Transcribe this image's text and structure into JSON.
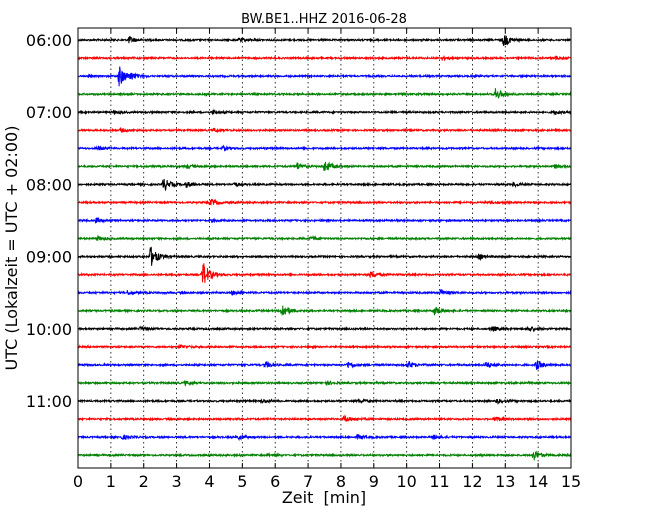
{
  "chart_data": {
    "type": "line",
    "title": "BW.BE1..HHZ 2016-06-28",
    "xlabel": "Zeit  [min]",
    "ylabel": "UTC (Lokalzeit = UTC + 02:00)",
    "xlim": [
      0,
      15
    ],
    "x_ticks": [
      0,
      1,
      2,
      3,
      4,
      5,
      6,
      7,
      8,
      9,
      10,
      11,
      12,
      13,
      14,
      15
    ],
    "y_tick_labels": [
      "06:00",
      "07:00",
      "08:00",
      "09:00",
      "10:00",
      "11:00"
    ],
    "trace_interval_min": 15,
    "grid": "vertical dotted lines at every minute",
    "colors": [
      "#000000",
      "#ff0000",
      "#0000ff",
      "#008000"
    ],
    "traces": [
      {
        "start": "06:00",
        "color": "#000000",
        "events": [
          [
            1.55,
            0.5
          ],
          [
            4.9,
            0.3
          ],
          [
            12.95,
            1.0
          ]
        ]
      },
      {
        "start": "06:15",
        "color": "#ff0000",
        "events": [
          [
            11.1,
            0.3
          ],
          [
            14.5,
            0.3
          ]
        ]
      },
      {
        "start": "06:30",
        "color": "#0000ff",
        "events": [
          [
            1.25,
            1.6
          ],
          [
            1.6,
            0.4
          ]
        ]
      },
      {
        "start": "06:45",
        "color": "#008000",
        "events": [
          [
            12.7,
            0.9
          ]
        ]
      },
      {
        "start": "07:00",
        "color": "#000000",
        "events": [
          [
            1.1,
            0.3
          ],
          [
            4.1,
            0.3
          ],
          [
            14.5,
            0.3
          ]
        ]
      },
      {
        "start": "07:15",
        "color": "#ff0000",
        "events": [
          [
            1.3,
            0.3
          ],
          [
            4.15,
            0.3
          ]
        ]
      },
      {
        "start": "07:30",
        "color": "#0000ff",
        "events": [
          [
            0.6,
            0.3
          ],
          [
            4.4,
            0.3
          ]
        ]
      },
      {
        "start": "07:45",
        "color": "#008000",
        "events": [
          [
            3.3,
            0.3
          ],
          [
            6.65,
            0.6
          ],
          [
            7.5,
            0.9
          ],
          [
            14.5,
            0.3
          ]
        ]
      },
      {
        "start": "08:00",
        "color": "#000000",
        "events": [
          [
            2.6,
            1.0
          ],
          [
            3.3,
            0.4
          ],
          [
            4.75,
            0.3
          ],
          [
            13.25,
            0.3
          ]
        ]
      },
      {
        "start": "08:15",
        "color": "#ff0000",
        "events": [
          [
            4.05,
            0.5
          ],
          [
            12.5,
            0.2
          ]
        ]
      },
      {
        "start": "08:30",
        "color": "#0000ff",
        "events": [
          [
            0.55,
            0.3
          ],
          [
            4.05,
            0.2
          ]
        ]
      },
      {
        "start": "08:45",
        "color": "#008000",
        "events": [
          [
            0.6,
            0.3
          ],
          [
            7.1,
            0.3
          ]
        ]
      },
      {
        "start": "09:00",
        "color": "#000000",
        "events": [
          [
            2.2,
            1.6
          ],
          [
            12.2,
            0.4
          ]
        ]
      },
      {
        "start": "09:15",
        "color": "#ff0000",
        "events": [
          [
            3.8,
            2.0
          ],
          [
            8.9,
            0.5
          ]
        ]
      },
      {
        "start": "09:30",
        "color": "#0000ff",
        "events": [
          [
            1.5,
            0.3
          ],
          [
            4.7,
            0.3
          ],
          [
            11.05,
            0.5
          ]
        ]
      },
      {
        "start": "09:45",
        "color": "#008000",
        "events": [
          [
            6.2,
            1.2
          ],
          [
            10.85,
            0.6
          ]
        ]
      },
      {
        "start": "10:00",
        "color": "#000000",
        "events": [
          [
            1.9,
            0.3
          ],
          [
            12.6,
            0.4
          ],
          [
            13.7,
            0.4
          ]
        ]
      },
      {
        "start": "10:15",
        "color": "#ff0000",
        "events": [
          [
            3.1,
            0.3
          ]
        ]
      },
      {
        "start": "10:30",
        "color": "#0000ff",
        "events": [
          [
            5.7,
            0.5
          ],
          [
            8.2,
            0.5
          ],
          [
            10.05,
            0.5
          ],
          [
            12.4,
            0.5
          ],
          [
            13.95,
            0.7
          ]
        ]
      },
      {
        "start": "10:45",
        "color": "#008000",
        "events": [
          [
            3.25,
            0.3
          ],
          [
            7.55,
            0.3
          ]
        ]
      },
      {
        "start": "11:00",
        "color": "#000000",
        "events": [
          [
            5.6,
            0.3
          ],
          [
            8.55,
            0.3
          ],
          [
            12.75,
            0.3
          ]
        ]
      },
      {
        "start": "11:15",
        "color": "#ff0000",
        "events": [
          [
            8.1,
            0.5
          ],
          [
            12.7,
            0.4
          ]
        ]
      },
      {
        "start": "11:30",
        "color": "#0000ff",
        "events": [
          [
            1.35,
            0.3
          ],
          [
            4.9,
            0.3
          ],
          [
            8.5,
            0.3
          ],
          [
            10.8,
            0.3
          ]
        ]
      },
      {
        "start": "11:45",
        "color": "#008000",
        "events": [
          [
            5.75,
            0.2
          ],
          [
            13.85,
            0.8
          ]
        ]
      }
    ]
  }
}
